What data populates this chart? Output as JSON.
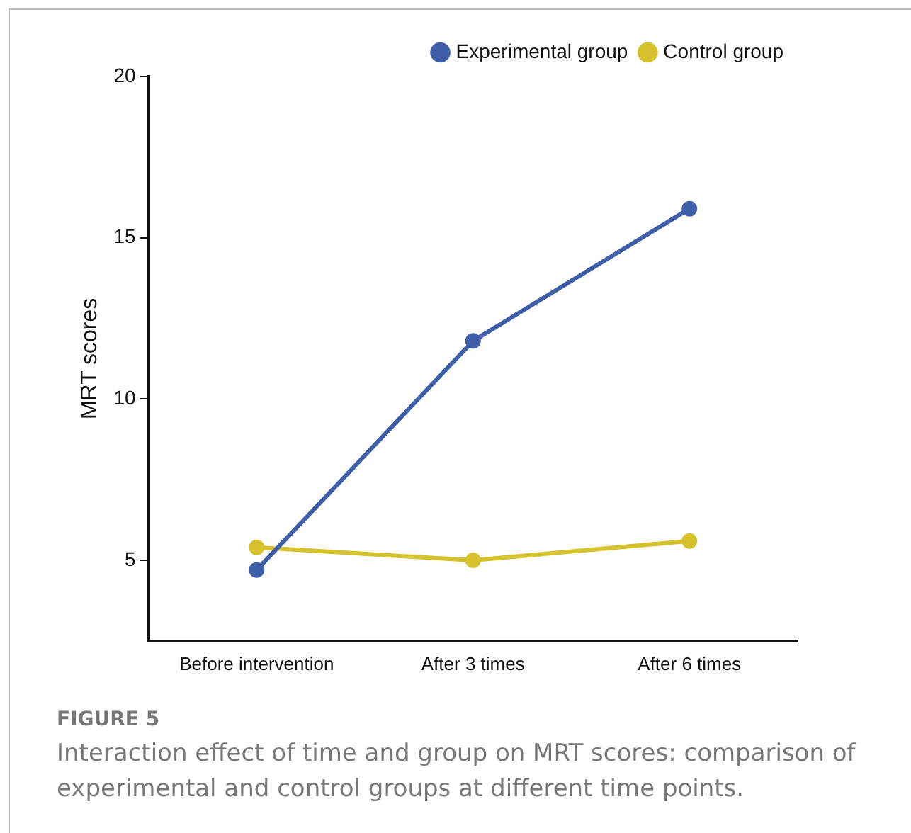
{
  "chart_data": {
    "type": "line",
    "ylabel": "MRT scores",
    "categories": [
      "Before intervention",
      "After 3 times",
      "After 6 times"
    ],
    "series": [
      {
        "name": "Experimental group",
        "color": "#3f5ea8",
        "values": [
          4.7,
          11.8,
          15.9
        ]
      },
      {
        "name": "Control group",
        "color": "#d6c22c",
        "values": [
          5.4,
          5.0,
          5.6
        ]
      }
    ],
    "ylim": [
      2.5,
      20
    ],
    "yticks": [
      5,
      10,
      15,
      20
    ],
    "grid": false,
    "legend": "top right",
    "marker": "circle",
    "line_style": "solid",
    "annotations": [
      "FIGURE 5",
      "Interaction effect of time and group on MRT scores: comparison of experimental and control groups at different time points."
    ]
  }
}
